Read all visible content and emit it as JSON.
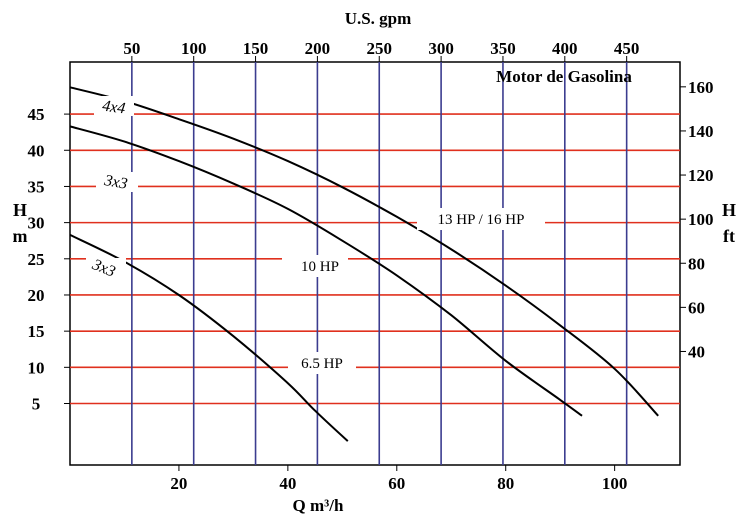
{
  "chart_data": {
    "type": "line",
    "title": "Motor de Gasolina",
    "x_bottom": {
      "label": "Q  m³/h",
      "range": [
        0,
        112
      ],
      "ticks": [
        "20",
        "40",
        "60",
        "80",
        "100"
      ],
      "tick_values": [
        20,
        40,
        60,
        80,
        100
      ]
    },
    "x_top": {
      "label": "U.S. gpm",
      "ticks": [
        "50",
        "100",
        "150",
        "200",
        "250",
        "300",
        "350",
        "400",
        "450"
      ],
      "tick_values": [
        50,
        100,
        150,
        200,
        250,
        300,
        350,
        400,
        450
      ]
    },
    "y_left": {
      "label_line1": "H",
      "label_line2": "m",
      "range": [
        -3.5,
        52.2
      ],
      "ticks": [
        "5",
        "10",
        "15",
        "20",
        "25",
        "30",
        "35",
        "40",
        "45"
      ],
      "tick_values": [
        5,
        10,
        15,
        20,
        25,
        30,
        35,
        40,
        45
      ]
    },
    "y_right": {
      "label_line1": "H",
      "label_line2": "ft",
      "ticks": [
        "40",
        "60",
        "80",
        "100",
        "120",
        "140",
        "160"
      ],
      "tick_values": [
        40,
        60,
        80,
        100,
        120,
        140,
        160
      ]
    },
    "grid": true,
    "series": [
      {
        "name": "13 HP / 16 HP",
        "pump_label": "4x4",
        "x": [
          0,
          10,
          20,
          30,
          40,
          50,
          60,
          70,
          80,
          90,
          100,
          108
        ],
        "y": [
          48.7,
          46.8,
          44.3,
          41.6,
          38.5,
          34.9,
          30.8,
          26.3,
          21.3,
          15.8,
          9.8,
          3.3
        ]
      },
      {
        "name": "10 HP",
        "pump_label": "3x3",
        "x": [
          0,
          10,
          20,
          30,
          40,
          50,
          60,
          70,
          80,
          90,
          94
        ],
        "y": [
          43.3,
          41.2,
          38.5,
          35.4,
          31.9,
          27.5,
          22.7,
          17.2,
          10.9,
          5.5,
          3.3
        ]
      },
      {
        "name": "6.5 HP",
        "pump_label": "3x3",
        "x": [
          0,
          10,
          20,
          30,
          40,
          45,
          51
        ],
        "y": [
          28.3,
          24.6,
          20.0,
          14.3,
          7.8,
          4.0,
          -0.2
        ]
      }
    ]
  }
}
